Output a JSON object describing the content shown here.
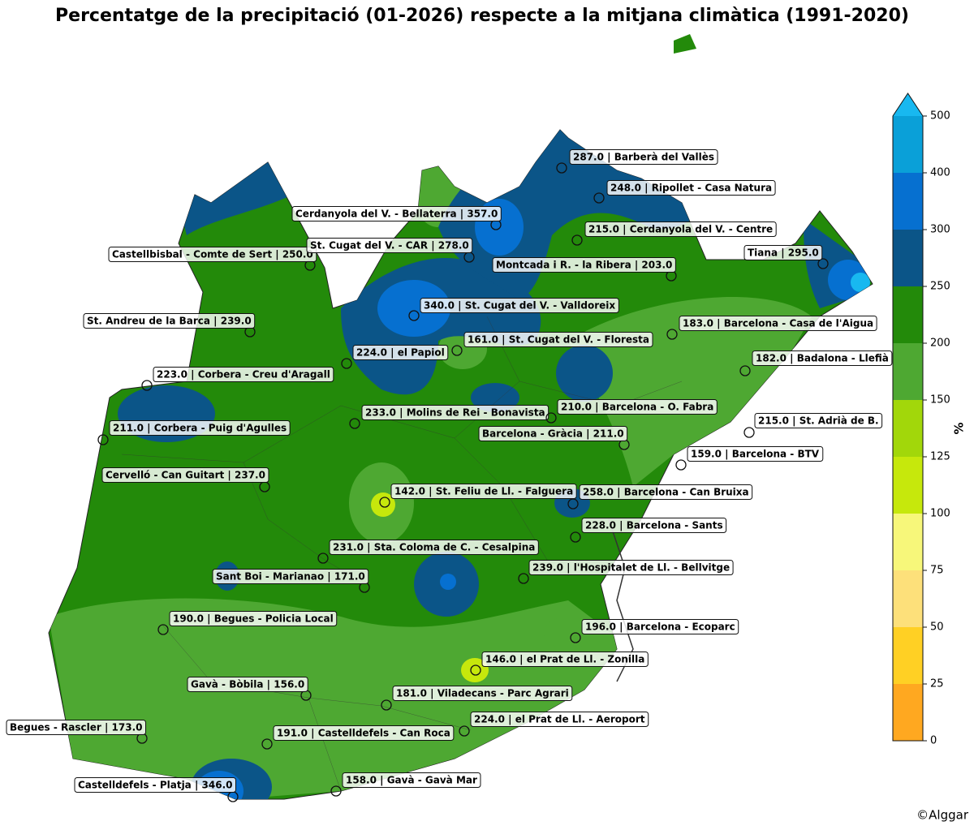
{
  "title": "Percentatge de la precipitació (01-2026) respecte a la mitjana climàtica (1991-2020)",
  "stations": [
    "287.0 | Barberà del Vallès",
    "248.0 | Ripollet - Casa Natura",
    "Cerdanyola del V. - Bellaterra | 357.0",
    "215.0 | Cerdanyola del V. - Centre",
    "Castellbisbal - Comte de Sert | 250.0",
    "St. Cugat del V. - CAR | 278.0",
    "Montcada i R. - la Ribera | 203.0",
    "Tiana | 295.0",
    "340.0 | St. Cugat del V. - Valldoreix",
    "St. Andreu de la Barca | 239.0",
    "183.0 | Barcelona - Casa de l'Aigua",
    "161.0 | St. Cugat del V. - Floresta",
    "224.0 | el Papiol",
    "182.0 | Badalona - Llefià",
    "223.0 | Corbera - Creu d'Aragall",
    "233.0 | Molins de Rei - Bonavista",
    "210.0 | Barcelona - O. Fabra",
    "215.0 | St. Adrià de B.",
    "211.0 | Corbera - Puig d'Agulles",
    "Barcelona - Gràcia | 211.0",
    "159.0 | Barcelona - BTV",
    "Cervelló - Can Guitart | 237.0",
    "142.0 | St. Feliu de Ll. - Falguera",
    "258.0 | Barcelona - Can Bruixa",
    "228.0 | Barcelona - Sants",
    "231.0 | Sta. Coloma de C. - Cesalpina",
    "239.0 | l'Hospitalet de Ll. - Bellvitge",
    "Sant Boi - Marianao | 171.0",
    "190.0 | Begues - Policia Local",
    "196.0 | Barcelona - Ecoparc",
    "146.0 | el Prat de Ll. - Zonilla",
    "Gavà - Bòbila | 156.0",
    "181.0 | Viladecans - Parc Agrari",
    "224.0 | el Prat de Ll. - Aeroport",
    "Begues - Rascler | 173.0",
    "191.0 | Castelldefels - Can Roca",
    "Castelldefels - Platja | 346.0",
    "158.0 | Gavà - Gavà Mar"
  ],
  "colorbar": {
    "label": "%",
    "ticks": [
      0,
      25,
      50,
      75,
      100,
      125,
      150,
      200,
      250,
      300,
      400,
      500
    ],
    "colors": [
      "#ffa820",
      "#ffd024",
      "#fde07a",
      "#f7f77a",
      "#c6e80c",
      "#a2d70a",
      "#4ea832",
      "#238a0a",
      "#0b5588",
      "#0670d0",
      "#0aa0d8"
    ],
    "extend_color": "#18b8f0"
  },
  "credit": "©Alggar"
}
